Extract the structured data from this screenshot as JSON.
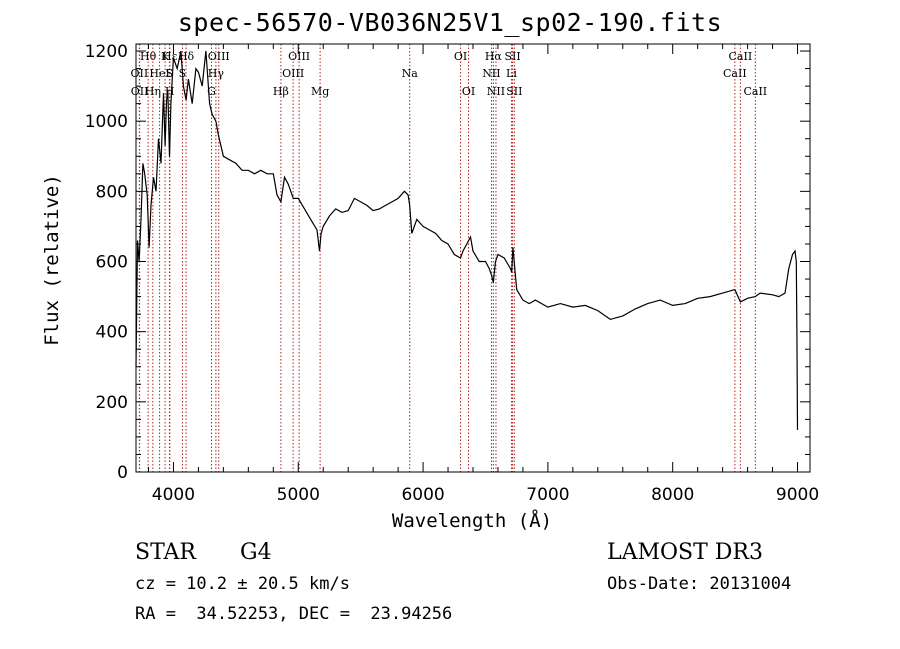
{
  "chart_data": {
    "type": "line",
    "title": "spec-56570-VB036N25V1_sp02-190.fits",
    "xlabel": "Wavelength (Å)",
    "ylabel": "Flux (relative)",
    "xlim": [
      3700,
      9100
    ],
    "ylim": [
      0,
      1220
    ],
    "xticks": [
      4000,
      5000,
      6000,
      7000,
      8000,
      9000
    ],
    "yticks": [
      0,
      200,
      400,
      600,
      800,
      1000,
      1200
    ],
    "series": [
      {
        "name": "spectrum",
        "x": [
          3700,
          3712,
          3725,
          3740,
          3755,
          3770,
          3790,
          3805,
          3820,
          3840,
          3860,
          3880,
          3900,
          3920,
          3933,
          3945,
          3955,
          3968,
          3980,
          4000,
          4030,
          4060,
          4080,
          4101,
          4120,
          4150,
          4180,
          4200,
          4230,
          4260,
          4290,
          4310,
          4340,
          4360,
          4380,
          4400,
          4450,
          4500,
          4550,
          4600,
          4650,
          4700,
          4750,
          4800,
          4830,
          4861,
          4890,
          4920,
          4960,
          5000,
          5050,
          5100,
          5150,
          5170,
          5183,
          5200,
          5250,
          5300,
          5350,
          5400,
          5450,
          5500,
          5550,
          5600,
          5650,
          5700,
          5750,
          5800,
          5850,
          5880,
          5893,
          5910,
          5950,
          6000,
          6050,
          6100,
          6150,
          6200,
          6250,
          6300,
          6320,
          6350,
          6380,
          6400,
          6450,
          6500,
          6530,
          6550,
          6563,
          6580,
          6600,
          6650,
          6700,
          6710,
          6720,
          6750,
          6800,
          6850,
          6900,
          6950,
          7000,
          7100,
          7200,
          7300,
          7400,
          7500,
          7600,
          7700,
          7800,
          7900,
          8000,
          8100,
          8200,
          8300,
          8400,
          8498,
          8542,
          8600,
          8662,
          8700,
          8800,
          8850,
          8900,
          8930,
          8960,
          8980,
          8990,
          8995,
          9000
        ],
        "values": [
          300,
          660,
          600,
          720,
          880,
          850,
          790,
          640,
          760,
          840,
          800,
          950,
          880,
          1080,
          930,
          1060,
          1090,
          900,
          1050,
          1180,
          1150,
          1200,
          1100,
          1060,
          1120,
          1050,
          1150,
          1140,
          1100,
          1200,
          1050,
          1020,
          1000,
          960,
          930,
          900,
          890,
          880,
          860,
          860,
          850,
          860,
          850,
          850,
          790,
          770,
          840,
          820,
          780,
          780,
          750,
          720,
          690,
          630,
          680,
          700,
          730,
          750,
          740,
          745,
          780,
          770,
          760,
          745,
          750,
          760,
          770,
          780,
          800,
          790,
          760,
          680,
          720,
          700,
          690,
          680,
          660,
          650,
          620,
          610,
          630,
          650,
          670,
          630,
          600,
          600,
          580,
          560,
          540,
          600,
          620,
          610,
          580,
          570,
          640,
          520,
          490,
          480,
          490,
          480,
          470,
          480,
          470,
          475,
          460,
          435,
          445,
          465,
          480,
          490,
          475,
          480,
          495,
          500,
          510,
          520,
          485,
          495,
          500,
          510,
          505,
          500,
          510,
          580,
          620,
          630,
          600,
          400,
          120
        ]
      }
    ],
    "lines": [
      {
        "label": "Hθ",
        "x": 3797,
        "row": 0
      },
      {
        "label": "OII",
        "x": 3727,
        "row": 1
      },
      {
        "label": "OII",
        "x": 3729,
        "row": 2
      },
      {
        "label": "Hη",
        "x": 3835,
        "row": 2
      },
      {
        "label": "HeI",
        "x": 3889,
        "row": 1
      },
      {
        "label": "K",
        "x": 3933,
        "row": 0
      },
      {
        "label": "S",
        "x": 3968,
        "row": 1
      },
      {
        "label": "H",
        "x": 3970,
        "row": 2
      },
      {
        "label": "Hε",
        "x": 3970,
        "row": 0
      },
      {
        "label": "Hδ",
        "x": 4101,
        "row": 0
      },
      {
        "label": "S",
        "x": 4072,
        "row": 1
      },
      {
        "label": "OIII",
        "x": 4363,
        "row": 0
      },
      {
        "label": "Hγ",
        "x": 4340,
        "row": 1
      },
      {
        "label": "G",
        "x": 4305,
        "row": 2
      },
      {
        "label": "Hβ",
        "x": 4861,
        "row": 2
      },
      {
        "label": "OIII",
        "x": 4959,
        "row": 1
      },
      {
        "label": "OIII",
        "x": 5007,
        "row": 0
      },
      {
        "label": "Mg",
        "x": 5175,
        "row": 2
      },
      {
        "label": "Na",
        "x": 5893,
        "row": 1
      },
      {
        "label": "OI",
        "x": 6300,
        "row": 0
      },
      {
        "label": "OI",
        "x": 6364,
        "row": 2
      },
      {
        "label": "Hα",
        "x": 6563,
        "row": 0
      },
      {
        "label": "NII",
        "x": 6548,
        "row": 1
      },
      {
        "label": "NII",
        "x": 6584,
        "row": 2
      },
      {
        "label": "SII",
        "x": 6717,
        "row": 0
      },
      {
        "label": "Li",
        "x": 6708,
        "row": 1
      },
      {
        "label": "SII",
        "x": 6731,
        "row": 2
      },
      {
        "label": "CaII",
        "x": 8542,
        "row": 0
      },
      {
        "label": "CaII",
        "x": 8498,
        "row": 1
      },
      {
        "label": "CaII",
        "x": 8662,
        "row": 2
      }
    ]
  },
  "info": {
    "class": "STAR",
    "subclass": "G4",
    "survey": "LAMOST DR3",
    "cz": "cz = 10.2 ± 20.5 km/s",
    "obs_date": "Obs-Date: 20131004",
    "coords": "RA =  34.52253, DEC =  23.94256"
  }
}
